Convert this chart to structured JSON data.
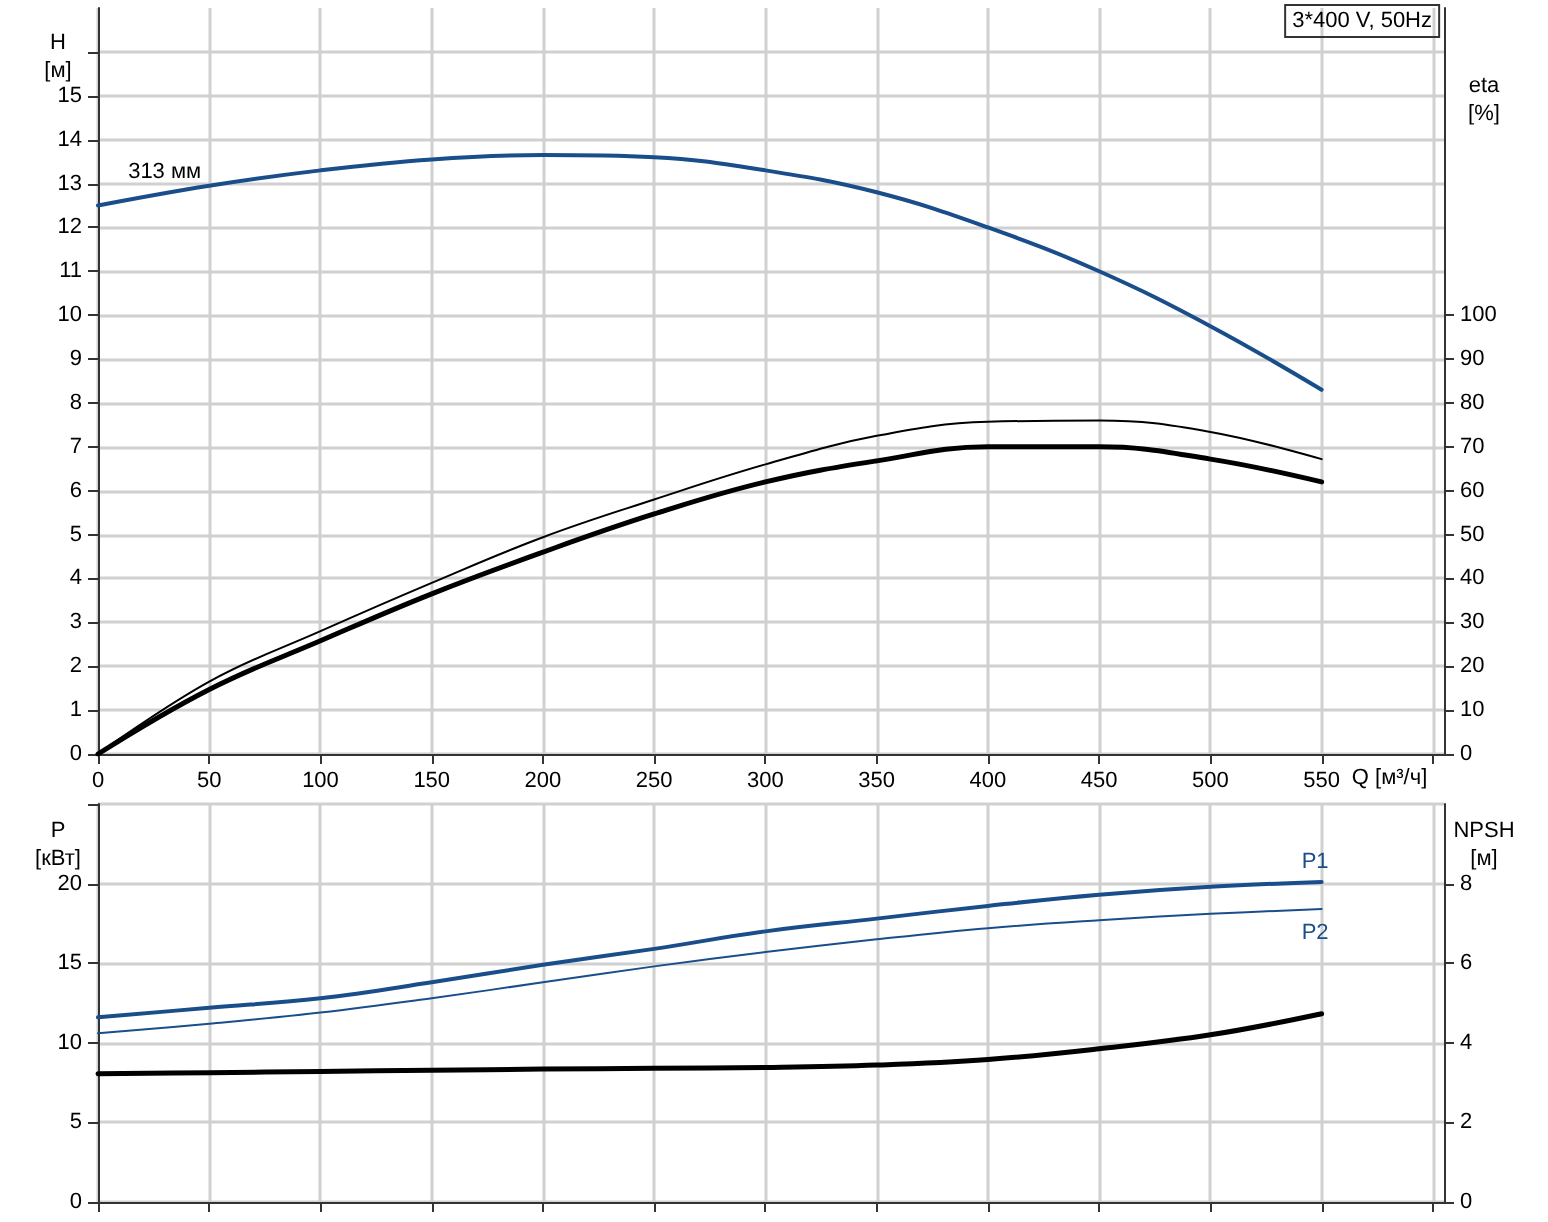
{
  "chart_data": [
    {
      "type": "line",
      "title": "3*400 V, 50Hz",
      "xlabel": "Q [м³/ч]",
      "ylabel": "H\n[м]",
      "y2label": "eta\n[%]",
      "x": [
        0,
        50,
        100,
        150,
        200,
        250,
        300,
        350,
        400,
        450,
        500,
        550
      ],
      "series": [
        {
          "name": "313 мм",
          "color": "#1a4e8a",
          "values": [
            12.5,
            12.95,
            13.3,
            13.55,
            13.65,
            13.6,
            13.3,
            12.8,
            12.0,
            11.0,
            9.75,
            8.3
          ]
        },
        {
          "color": "#000000",
          "axis": "y2",
          "values": [
            0,
            16.5,
            28,
            39,
            49.4,
            58,
            66,
            72.5,
            75.7,
            76,
            73.4,
            67.2
          ]
        },
        {
          "color": "#000000",
          "axis": "y2",
          "values": [
            0,
            14.7,
            25.8,
            36.5,
            46,
            54.7,
            62,
            66.8,
            70,
            70,
            67.2,
            62
          ]
        }
      ],
      "xlim": [
        0,
        605
      ],
      "xticks": [
        0,
        50,
        100,
        150,
        200,
        250,
        300,
        350,
        400,
        450,
        500,
        550,
        {
          "value": 600,
          "label": null
        }
      ],
      "ylim": [
        0,
        17
      ],
      "yticks": [
        0,
        1,
        2,
        3,
        4,
        5,
        6,
        7,
        8,
        9,
        10,
        11,
        12,
        13,
        14,
        15,
        {
          "value": 16,
          "label": null
        }
      ],
      "y2lim": [
        0,
        170
      ],
      "y2ticks": [
        0,
        10,
        20,
        30,
        40,
        50,
        60,
        70,
        80,
        90,
        100
      ],
      "grid": true,
      "legend": false,
      "marker": "none",
      "line_style": "solid"
    },
    {
      "type": "line",
      "ylabel": "P\n[кВт]",
      "y2label": "NPSH\n[м]",
      "x": [
        0,
        50,
        100,
        150,
        200,
        250,
        300,
        350,
        400,
        450,
        500,
        550
      ],
      "series": [
        {
          "name": "P1",
          "color": "#1a4e8a",
          "values": [
            11.6,
            12.2,
            12.8,
            13.8,
            14.9,
            15.9,
            17.0,
            17.8,
            18.6,
            19.3,
            19.8,
            20.1
          ]
        },
        {
          "name": "P2",
          "color": "#1a4e8a",
          "values": [
            10.6,
            11.2,
            11.9,
            12.8,
            13.8,
            14.8,
            15.7,
            16.5,
            17.2,
            17.7,
            18.1,
            18.4
          ]
        },
        {
          "color": "#000000",
          "axis": "y2",
          "values": [
            3.22,
            3.25,
            3.28,
            3.31,
            3.34,
            3.36,
            3.38,
            3.44,
            3.58,
            3.85,
            4.2,
            4.73
          ]
        }
      ],
      "xlim": [
        0,
        605
      ],
      "xticks": [
        0,
        50,
        100,
        150,
        200,
        250,
        300,
        350,
        400,
        450,
        500,
        550,
        {
          "value": 600,
          "label": null
        }
      ],
      "ylim": [
        0,
        25
      ],
      "yticks": [
        0,
        5,
        10,
        15,
        20,
        {
          "value": 25,
          "label": null
        }
      ],
      "y2lim": [
        0,
        10
      ],
      "y2ticks": [
        0,
        2,
        4,
        6,
        8
      ],
      "tick_labels": "y",
      "grid": true,
      "legend": false,
      "marker": "none",
      "line_style": "solid"
    }
  ]
}
